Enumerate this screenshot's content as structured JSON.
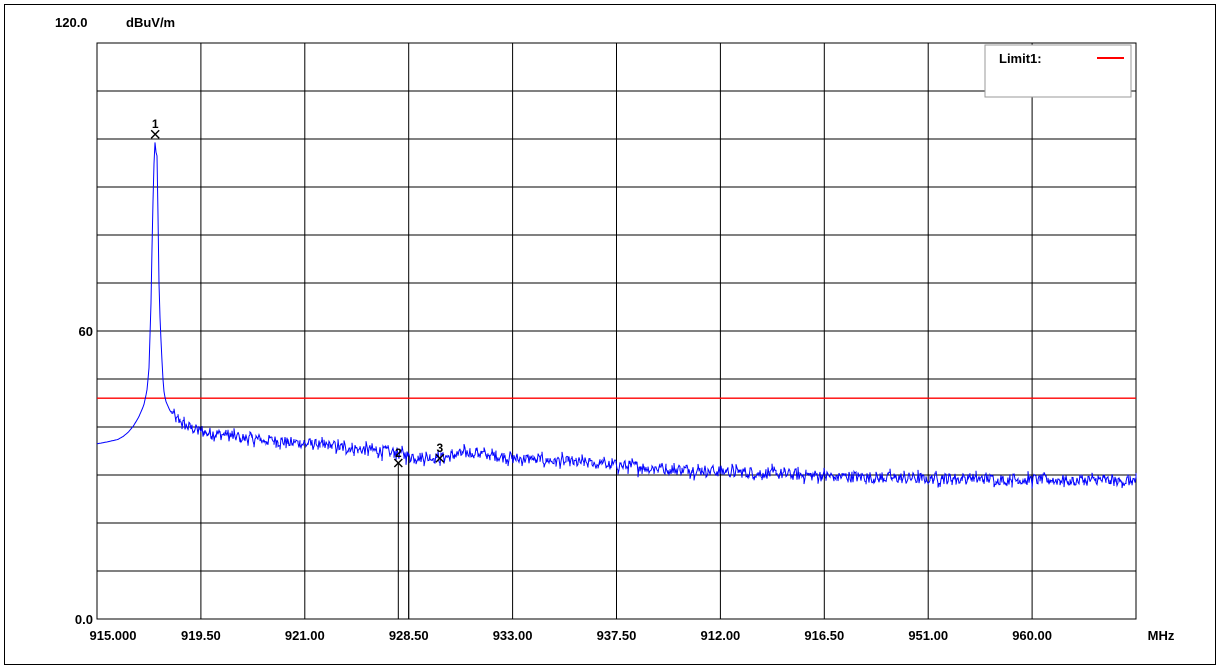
{
  "chart_data": {
    "type": "line",
    "title": "",
    "y_unit": "dBuV/m",
    "x_unit": "MHz",
    "ylim": [
      0.0,
      120.0
    ],
    "y_tick_labels": [
      {
        "label": "120.0",
        "value": 120
      },
      {
        "label": "60",
        "value": 60
      },
      {
        "label": "0.0",
        "value": 0
      }
    ],
    "x_tick_labels": [
      "915.000",
      "919.50",
      "921.00",
      "928.50",
      "933.00",
      "937.50",
      "912.00",
      "916.50",
      "951.00",
      "960.00"
    ],
    "x_extra_label": "MHz",
    "grid": true,
    "colors": {
      "trace": "#0000ff",
      "limit": "#ff0000",
      "grid": "#000000"
    },
    "legend": {
      "label": "Limit1:",
      "placement": "top-right",
      "color": "#ff0000"
    },
    "limit_line": {
      "name": "Limit1",
      "value": 46
    },
    "series": [
      {
        "values": [
          {
            "x": 0.0,
            "y": 36.5
          },
          {
            "x": 0.1,
            "y": 36.9
          },
          {
            "x": 0.2,
            "y": 37.4
          },
          {
            "x": 0.25,
            "y": 38.0
          },
          {
            "x": 0.3,
            "y": 38.9
          },
          {
            "x": 0.35,
            "y": 40.2
          },
          {
            "x": 0.4,
            "y": 42.0
          },
          {
            "x": 0.45,
            "y": 44.5
          },
          {
            "x": 0.48,
            "y": 47.5
          },
          {
            "x": 0.5,
            "y": 52.0
          },
          {
            "x": 0.52,
            "y": 66.0
          },
          {
            "x": 0.53,
            "y": 78.0
          },
          {
            "x": 0.54,
            "y": 88.0
          },
          {
            "x": 0.55,
            "y": 96.0
          },
          {
            "x": 0.56,
            "y": 100.0
          },
          {
            "x": 0.565,
            "y": 93.0
          },
          {
            "x": 0.57,
            "y": 100.5
          },
          {
            "x": 0.575,
            "y": 94.0
          },
          {
            "x": 0.58,
            "y": 99.0
          },
          {
            "x": 0.59,
            "y": 78.0
          },
          {
            "x": 0.6,
            "y": 66.0
          },
          {
            "x": 0.62,
            "y": 56.0
          },
          {
            "x": 0.64,
            "y": 48.0
          },
          {
            "x": 0.66,
            "y": 45.5
          },
          {
            "x": 0.7,
            "y": 43.5
          },
          {
            "x": 0.75,
            "y": 42.0
          },
          {
            "x": 0.8,
            "y": 41.0
          },
          {
            "x": 0.9,
            "y": 39.8
          },
          {
            "x": 1.0,
            "y": 39.0
          },
          {
            "x": 1.5,
            "y": 37.5
          },
          {
            "x": 2.0,
            "y": 36.5
          },
          {
            "x": 2.5,
            "y": 35.5
          },
          {
            "x": 2.9,
            "y": 34.5
          },
          {
            "x": 3.0,
            "y": 34.0
          },
          {
            "x": 3.3,
            "y": 33.5
          },
          {
            "x": 3.6,
            "y": 34.8
          },
          {
            "x": 4.0,
            "y": 33.5
          },
          {
            "x": 4.5,
            "y": 32.8
          },
          {
            "x": 5.0,
            "y": 32.0
          },
          {
            "x": 5.5,
            "y": 31.3
          },
          {
            "x": 6.0,
            "y": 30.8
          },
          {
            "x": 6.5,
            "y": 30.3
          },
          {
            "x": 7.0,
            "y": 29.8
          },
          {
            "x": 7.5,
            "y": 29.5
          },
          {
            "x": 8.0,
            "y": 29.3
          },
          {
            "x": 8.5,
            "y": 29.2
          },
          {
            "x": 9.0,
            "y": 29.0
          },
          {
            "x": 9.5,
            "y": 28.9
          },
          {
            "x": 10.0,
            "y": 28.8
          }
        ]
      }
    ],
    "markers": [
      {
        "label": "1",
        "x": 0.56,
        "y": 101.0
      },
      {
        "label": "2",
        "x": 2.9,
        "y": 32.5
      },
      {
        "label": "3",
        "x": 3.3,
        "y": 33.5
      }
    ],
    "marker_drops": [
      {
        "x": 2.9,
        "y": 32.5
      },
      {
        "x": 3.0,
        "y": 34.0
      }
    ]
  }
}
